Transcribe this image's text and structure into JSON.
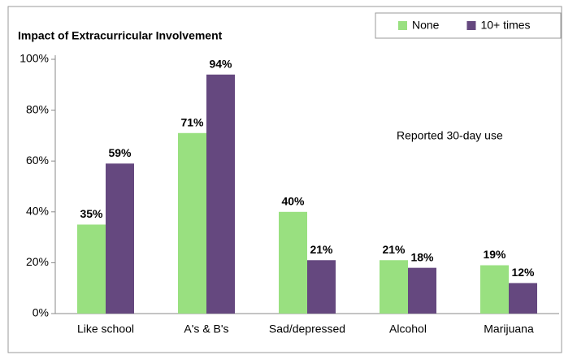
{
  "chart_data": {
    "type": "bar",
    "title": "Impact of Extracurricular Involvement",
    "annotation": "Reported 30-day use",
    "categories": [
      "Like school",
      "A's & B's",
      "Sad/depressed",
      "Alcohol",
      "Marijuana"
    ],
    "series": [
      {
        "name": "None",
        "color": "#99e080",
        "values": [
          35,
          71,
          40,
          21,
          19
        ],
        "value_labels": [
          "35%",
          "71%",
          "40%",
          "21%",
          "19%"
        ]
      },
      {
        "name": "10+ times",
        "color": "#65487f",
        "values": [
          59,
          94,
          21,
          18,
          12
        ],
        "value_labels": [
          "59%",
          "94%",
          "21%",
          "18%",
          "12%"
        ]
      }
    ],
    "ylim": [
      0,
      100
    ],
    "yticks": [
      {
        "value": 0,
        "label": "0%"
      },
      {
        "value": 20,
        "label": "20%"
      },
      {
        "value": 40,
        "label": "40%"
      },
      {
        "value": 60,
        "label": "60%"
      },
      {
        "value": 80,
        "label": "80%"
      },
      {
        "value": 100,
        "label": "100%"
      }
    ],
    "grid": false,
    "legend": "top-right"
  }
}
